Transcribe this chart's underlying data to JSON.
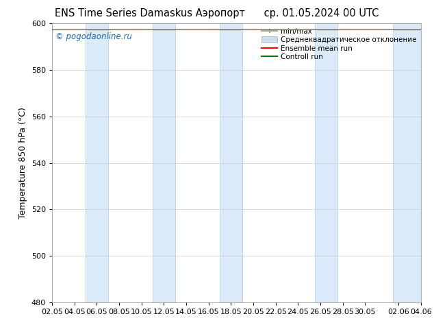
{
  "title_left": "ENS Time Series Damaskus Аэропорт",
  "title_right": "ср. 01.05.2024 00 UTC",
  "ylabel": "Temperature 850 hPa (°C)",
  "watermark": "© pogodaonline.ru",
  "ylim": [
    480,
    600
  ],
  "yticks": [
    480,
    500,
    520,
    540,
    560,
    580,
    600
  ],
  "xlim_start": 0,
  "xlim_end": 33,
  "xtick_labels": [
    "02.05",
    "04.05",
    "06.05",
    "08.05",
    "10.05",
    "12.05",
    "14.05",
    "16.05",
    "18.05",
    "20.05",
    "22.05",
    "24.05",
    "26.05",
    "28.05",
    "30.05",
    "02.06",
    "04.06"
  ],
  "xtick_positions": [
    0,
    2,
    4,
    6,
    8,
    10,
    12,
    14,
    16,
    18,
    20,
    22,
    24,
    26,
    28,
    31,
    33
  ],
  "shaded_bands": [
    {
      "x_start": 3.0,
      "x_end": 5.0
    },
    {
      "x_start": 9.0,
      "x_end": 11.0
    },
    {
      "x_start": 15.0,
      "x_end": 17.0
    },
    {
      "x_start": 23.5,
      "x_end": 25.5
    },
    {
      "x_start": 30.5,
      "x_end": 33.0
    }
  ],
  "band_color": "#daeaf8",
  "band_edge_color": "#b0cce8",
  "line_value": 597.5,
  "minmax_color": "#aaaaaa",
  "stddev_color": "#ccdded",
  "ensemble_mean_color": "#ff0000",
  "control_run_color": "#008000",
  "legend_labels": [
    "min/max",
    "Среднеквадратическое отклонение",
    "Ensemble mean run",
    "Controll run"
  ],
  "background_color": "#ffffff",
  "grid_color": "#cccccc",
  "title_fontsize": 10.5,
  "axis_label_fontsize": 9,
  "tick_fontsize": 8,
  "watermark_color": "#1a6ab5"
}
